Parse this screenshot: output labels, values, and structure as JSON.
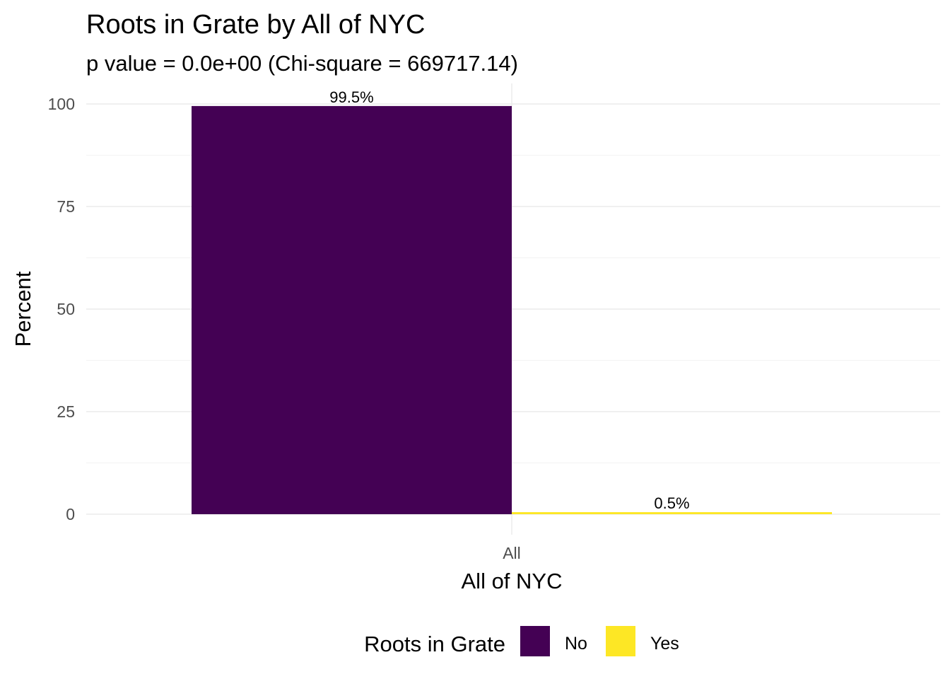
{
  "chart_data": {
    "type": "bar",
    "title": "Roots in Grate by All of NYC",
    "subtitle": "p value = 0.0e+00 (Chi-square = 669717.14)",
    "xlabel": "All of NYC",
    "ylabel": "Percent",
    "categories": [
      "All"
    ],
    "ylim": [
      0,
      100
    ],
    "yticks": [
      0,
      25,
      50,
      75,
      100
    ],
    "grid": true,
    "legend": {
      "title": "Roots in Grate",
      "position": "bottom"
    },
    "series": [
      {
        "name": "No",
        "values": [
          99.5
        ],
        "label": "99.5%",
        "color": "#440154"
      },
      {
        "name": "Yes",
        "values": [
          0.5
        ],
        "label": "0.5%",
        "color": "#FDE725"
      }
    ]
  }
}
